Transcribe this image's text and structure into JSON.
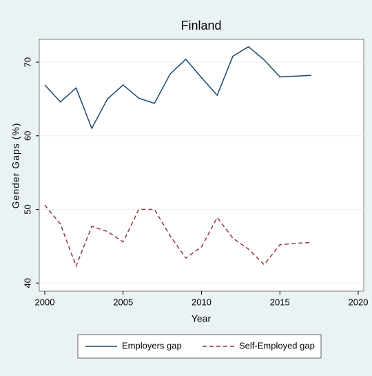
{
  "chart_data": {
    "type": "line",
    "title": "Finland",
    "x_label": "Year",
    "y_label": "Gender Gaps (%)",
    "x": [
      2000,
      2001,
      2002,
      2003,
      2004,
      2005,
      2006,
      2007,
      2008,
      2009,
      2010,
      2011,
      2012,
      2013,
      2014,
      2015,
      2016,
      2017
    ],
    "series": [
      {
        "name": "Employers gap",
        "color": "#1a476f",
        "dash": false,
        "values": [
          66.9,
          64.6,
          66.5,
          61.0,
          65.0,
          66.9,
          65.1,
          64.4,
          68.4,
          70.4,
          67.9,
          65.5,
          70.8,
          72.1,
          70.3,
          68.0,
          68.1,
          68.2
        ]
      },
      {
        "name": "Self-Employed gap",
        "color": "#90353b",
        "dash": true,
        "values": [
          50.6,
          48.0,
          42.3,
          47.7,
          47.0,
          45.6,
          50.0,
          50.0,
          46.4,
          43.4,
          44.9,
          48.9,
          46.1,
          44.6,
          42.5,
          45.2,
          45.4,
          45.5
        ]
      }
    ],
    "xlim": [
      1999.65,
      2020.35
    ],
    "xticks": [
      2000,
      2005,
      2010,
      2015,
      2020
    ],
    "ylim": [
      38.9,
      73.1
    ],
    "yticks": [
      40,
      50,
      60,
      70
    ],
    "grid": true,
    "legend": "bottom"
  }
}
